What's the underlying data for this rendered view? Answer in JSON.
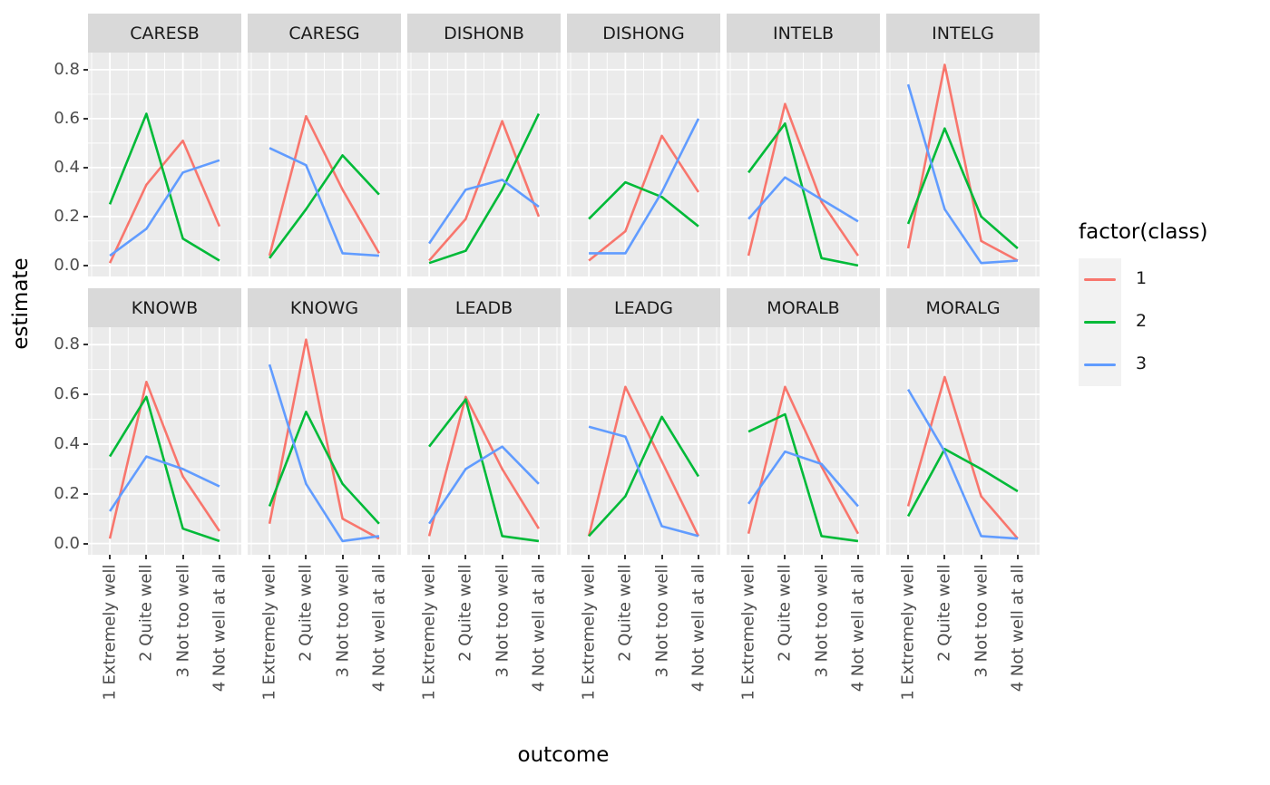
{
  "figure": {
    "y_axis_label": "estimate",
    "x_axis_label": "outcome",
    "legend": {
      "title": "factor(class)",
      "items": [
        {
          "label": "1",
          "color": "#F8766D"
        },
        {
          "label": "2",
          "color": "#00BA38"
        },
        {
          "label": "3",
          "color": "#619CFF"
        }
      ]
    },
    "colors": {
      "panel_bg": "#EBEBEB",
      "strip_bg": "#D9D9D9",
      "grid": "#FFFFFF",
      "axis_text": "#4D4D4D",
      "strip_text": "#1A1A1A",
      "tick_mark": "#333333",
      "legend_key_bg": "#F2F2F2"
    }
  },
  "chart_data": {
    "type": "line",
    "title": "",
    "xlabel": "outcome",
    "ylabel": "estimate",
    "legend_title": "factor(class)",
    "legend_position": "right",
    "grid": true,
    "categories": [
      "1 Extremely well",
      "2 Quite well",
      "3 Not too well",
      "4 Not well at all"
    ],
    "y_ticks": [
      0.0,
      0.2,
      0.4,
      0.6,
      0.8
    ],
    "ylim": [
      -0.045,
      0.87
    ],
    "series_names": [
      "1",
      "2",
      "3"
    ],
    "series_colors": [
      "#F8766D",
      "#00BA38",
      "#619CFF"
    ],
    "facets": [
      {
        "name": "CARESB",
        "series": [
          {
            "name": "1",
            "values": [
              0.01,
              0.33,
              0.51,
              0.16
            ]
          },
          {
            "name": "2",
            "values": [
              0.25,
              0.62,
              0.11,
              0.02
            ]
          },
          {
            "name": "3",
            "values": [
              0.04,
              0.15,
              0.38,
              0.43
            ]
          }
        ]
      },
      {
        "name": "CARESG",
        "series": [
          {
            "name": "1",
            "values": [
              0.04,
              0.61,
              0.31,
              0.05
            ]
          },
          {
            "name": "2",
            "values": [
              0.03,
              0.23,
              0.45,
              0.29
            ]
          },
          {
            "name": "3",
            "values": [
              0.48,
              0.41,
              0.05,
              0.04
            ]
          }
        ]
      },
      {
        "name": "DISHONB",
        "series": [
          {
            "name": "1",
            "values": [
              0.02,
              0.19,
              0.59,
              0.2
            ]
          },
          {
            "name": "2",
            "values": [
              0.01,
              0.06,
              0.31,
              0.62
            ]
          },
          {
            "name": "3",
            "values": [
              0.09,
              0.31,
              0.35,
              0.24
            ]
          }
        ]
      },
      {
        "name": "DISHONG",
        "series": [
          {
            "name": "1",
            "values": [
              0.02,
              0.14,
              0.53,
              0.3
            ]
          },
          {
            "name": "2",
            "values": [
              0.19,
              0.34,
              0.28,
              0.16
            ]
          },
          {
            "name": "3",
            "values": [
              0.05,
              0.05,
              0.3,
              0.6
            ]
          }
        ]
      },
      {
        "name": "INTELB",
        "series": [
          {
            "name": "1",
            "values": [
              0.04,
              0.66,
              0.26,
              0.04
            ]
          },
          {
            "name": "2",
            "values": [
              0.38,
              0.58,
              0.03,
              0.0
            ]
          },
          {
            "name": "3",
            "values": [
              0.19,
              0.36,
              0.27,
              0.18
            ]
          }
        ]
      },
      {
        "name": "INTELG",
        "series": [
          {
            "name": "1",
            "values": [
              0.07,
              0.82,
              0.1,
              0.02
            ]
          },
          {
            "name": "2",
            "values": [
              0.17,
              0.56,
              0.2,
              0.07
            ]
          },
          {
            "name": "3",
            "values": [
              0.74,
              0.23,
              0.01,
              0.02
            ]
          }
        ]
      },
      {
        "name": "KNOWB",
        "series": [
          {
            "name": "1",
            "values": [
              0.02,
              0.65,
              0.27,
              0.05
            ]
          },
          {
            "name": "2",
            "values": [
              0.35,
              0.59,
              0.06,
              0.01
            ]
          },
          {
            "name": "3",
            "values": [
              0.13,
              0.35,
              0.3,
              0.23
            ]
          }
        ]
      },
      {
        "name": "KNOWG",
        "series": [
          {
            "name": "1",
            "values": [
              0.08,
              0.82,
              0.1,
              0.02
            ]
          },
          {
            "name": "2",
            "values": [
              0.15,
              0.53,
              0.24,
              0.08
            ]
          },
          {
            "name": "3",
            "values": [
              0.72,
              0.24,
              0.01,
              0.03
            ]
          }
        ]
      },
      {
        "name": "LEADB",
        "series": [
          {
            "name": "1",
            "values": [
              0.03,
              0.59,
              0.3,
              0.06
            ]
          },
          {
            "name": "2",
            "values": [
              0.39,
              0.58,
              0.03,
              0.01
            ]
          },
          {
            "name": "3",
            "values": [
              0.08,
              0.3,
              0.39,
              0.24
            ]
          }
        ]
      },
      {
        "name": "LEADG",
        "series": [
          {
            "name": "1",
            "values": [
              0.03,
              0.63,
              0.33,
              0.03
            ]
          },
          {
            "name": "2",
            "values": [
              0.03,
              0.19,
              0.51,
              0.27
            ]
          },
          {
            "name": "3",
            "values": [
              0.47,
              0.43,
              0.07,
              0.03
            ]
          }
        ]
      },
      {
        "name": "MORALB",
        "series": [
          {
            "name": "1",
            "values": [
              0.04,
              0.63,
              0.31,
              0.04
            ]
          },
          {
            "name": "2",
            "values": [
              0.45,
              0.52,
              0.03,
              0.01
            ]
          },
          {
            "name": "3",
            "values": [
              0.16,
              0.37,
              0.32,
              0.15
            ]
          }
        ]
      },
      {
        "name": "MORALG",
        "series": [
          {
            "name": "1",
            "values": [
              0.15,
              0.67,
              0.19,
              0.02
            ]
          },
          {
            "name": "2",
            "values": [
              0.11,
              0.38,
              0.3,
              0.21
            ]
          },
          {
            "name": "3",
            "values": [
              0.62,
              0.37,
              0.03,
              0.02
            ]
          }
        ]
      }
    ]
  }
}
